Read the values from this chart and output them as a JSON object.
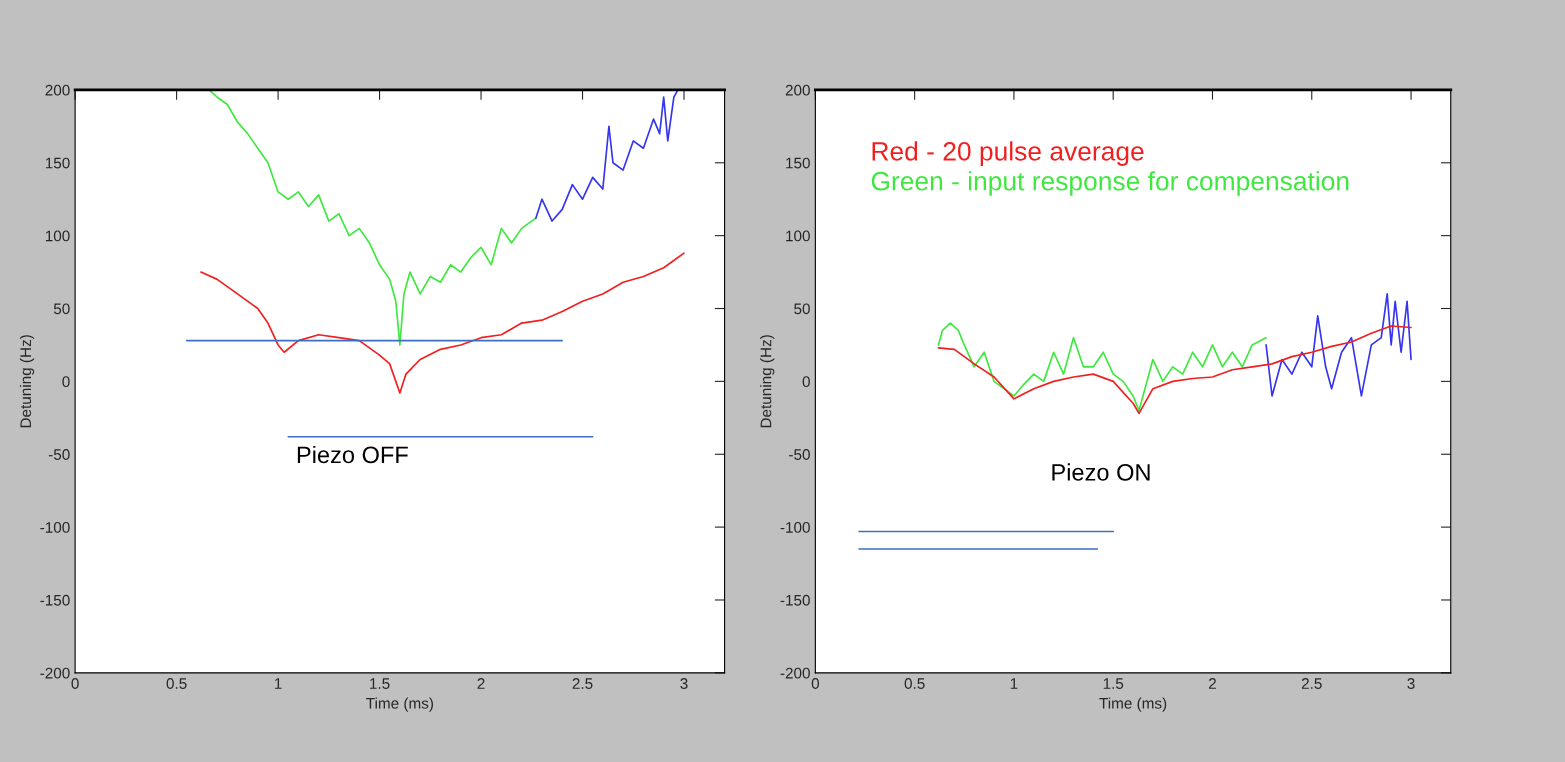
{
  "chart_data": [
    {
      "type": "line",
      "xlabel": "Time (ms)",
      "ylabel": "Detuning (Hz)",
      "xlim": [
        0,
        3.2
      ],
      "ylim": [
        -200,
        200
      ],
      "xticks": [
        0,
        0.5,
        1,
        1.5,
        2,
        2.5,
        3
      ],
      "yticks": [
        -200,
        -150,
        -100,
        -50,
        0,
        50,
        100,
        150,
        200
      ],
      "grid": false,
      "annotations": [
        "Piezo OFF"
      ],
      "series": [
        {
          "color": "#3ee83e",
          "x": [
            0.66,
            0.7,
            0.75,
            0.8,
            0.85,
            0.9,
            0.95,
            1.0,
            1.05,
            1.1,
            1.15,
            1.2,
            1.25,
            1.3,
            1.35,
            1.4,
            1.45,
            1.5,
            1.55,
            1.58,
            1.6,
            1.62,
            1.65,
            1.7,
            1.75,
            1.8,
            1.85,
            1.9,
            1.95,
            2.0,
            2.05,
            2.1,
            2.15,
            2.2,
            2.27
          ],
          "values": [
            200,
            195,
            190,
            178,
            170,
            160,
            150,
            130,
            125,
            130,
            120,
            128,
            110,
            115,
            100,
            105,
            95,
            80,
            70,
            55,
            25,
            60,
            75,
            60,
            72,
            68,
            80,
            75,
            85,
            92,
            80,
            105,
            95,
            105,
            112
          ]
        },
        {
          "color": "#3535f0",
          "x": [
            2.27,
            2.3,
            2.35,
            2.4,
            2.45,
            2.5,
            2.55,
            2.6,
            2.63,
            2.65,
            2.7,
            2.75,
            2.8,
            2.85,
            2.88,
            2.9,
            2.92,
            2.95,
            2.97
          ],
          "values": [
            112,
            125,
            110,
            118,
            135,
            125,
            140,
            132,
            175,
            150,
            145,
            165,
            160,
            180,
            170,
            195,
            165,
            195,
            200
          ]
        },
        {
          "color": "#f02020",
          "x": [
            0.62,
            0.7,
            0.8,
            0.9,
            0.95,
            1.0,
            1.03,
            1.1,
            1.2,
            1.3,
            1.4,
            1.5,
            1.55,
            1.6,
            1.63,
            1.7,
            1.8,
            1.9,
            2.0,
            2.1,
            2.2,
            2.3,
            2.4,
            2.5,
            2.6,
            2.7,
            2.8,
            2.9,
            3.0
          ],
          "values": [
            75,
            70,
            60,
            50,
            40,
            25,
            20,
            28,
            32,
            30,
            28,
            18,
            12,
            -8,
            5,
            15,
            22,
            25,
            30,
            32,
            40,
            42,
            48,
            55,
            60,
            68,
            72,
            78,
            88
          ]
        },
        {
          "color": "#3c6fbf",
          "x": [
            0.55,
            2.4
          ],
          "values": [
            28,
            28
          ]
        },
        {
          "color": "#3c6fbf",
          "x": [
            1.05,
            2.55
          ],
          "values": [
            -38,
            -38
          ]
        }
      ]
    },
    {
      "type": "line",
      "xlabel": "Time (ms)",
      "ylabel": "Detuning (Hz)",
      "xlim": [
        0,
        3.2
      ],
      "ylim": [
        -200,
        200
      ],
      "xticks": [
        0,
        0.5,
        1,
        1.5,
        2,
        2.5,
        3
      ],
      "yticks": [
        -200,
        -150,
        -100,
        -50,
        0,
        50,
        100,
        150,
        200
      ],
      "grid": false,
      "legend": "top",
      "annotations": [
        "Piezo ON"
      ],
      "series": [
        {
          "name": "Green - input response for compensation",
          "color": "#3ee83e",
          "x": [
            0.62,
            0.64,
            0.68,
            0.72,
            0.75,
            0.8,
            0.85,
            0.9,
            0.95,
            1.0,
            1.05,
            1.1,
            1.15,
            1.2,
            1.25,
            1.3,
            1.35,
            1.4,
            1.45,
            1.5,
            1.55,
            1.6,
            1.63,
            1.68,
            1.7,
            1.75,
            1.8,
            1.85,
            1.9,
            1.95,
            2.0,
            2.05,
            2.1,
            2.15,
            2.2,
            2.27
          ],
          "values": [
            25,
            35,
            40,
            35,
            25,
            10,
            20,
            0,
            -5,
            -10,
            -2,
            5,
            0,
            20,
            5,
            30,
            10,
            10,
            20,
            5,
            0,
            -10,
            -20,
            5,
            15,
            0,
            10,
            5,
            20,
            10,
            25,
            10,
            20,
            10,
            25,
            30
          ]
        },
        {
          "color": "#3535f0",
          "x": [
            2.27,
            2.3,
            2.35,
            2.4,
            2.45,
            2.5,
            2.53,
            2.57,
            2.6,
            2.65,
            2.7,
            2.75,
            2.8,
            2.85,
            2.88,
            2.9,
            2.92,
            2.95,
            2.98,
            3.0
          ],
          "values": [
            25,
            -10,
            15,
            5,
            20,
            10,
            45,
            10,
            -5,
            20,
            30,
            -10,
            25,
            30,
            60,
            25,
            55,
            20,
            55,
            15
          ]
        },
        {
          "name": "Red - 20 pulse average",
          "color": "#f02020",
          "x": [
            0.62,
            0.7,
            0.8,
            0.9,
            1.0,
            1.1,
            1.2,
            1.3,
            1.4,
            1.5,
            1.6,
            1.63,
            1.7,
            1.8,
            1.9,
            2.0,
            2.1,
            2.2,
            2.3,
            2.4,
            2.5,
            2.6,
            2.7,
            2.8,
            2.9,
            3.0
          ],
          "values": [
            23,
            22,
            12,
            3,
            -12,
            -5,
            0,
            3,
            5,
            0,
            -15,
            -22,
            -5,
            0,
            2,
            3,
            8,
            10,
            12,
            17,
            20,
            24,
            27,
            33,
            38,
            37
          ]
        },
        {
          "color": "#3c6fbf",
          "x": [
            0.22,
            1.5
          ],
          "values": [
            -103,
            -103
          ]
        },
        {
          "color": "#3c6fbf",
          "x": [
            0.22,
            1.42
          ],
          "values": [
            -115,
            -115
          ]
        }
      ]
    }
  ]
}
